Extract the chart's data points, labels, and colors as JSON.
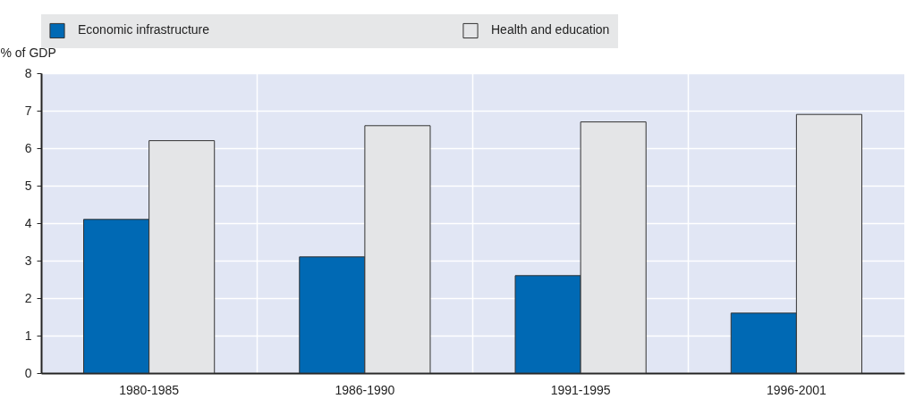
{
  "chart_data": {
    "type": "bar",
    "ylabel": "% of GDP",
    "categories": [
      "1980-1985",
      "1986-1990",
      "1991-1995",
      "1996-2001"
    ],
    "series": [
      {
        "name": "Economic infrastructure",
        "color": "#0069b4",
        "values": [
          4.1,
          3.1,
          2.6,
          1.6
        ]
      },
      {
        "name": "Health and education",
        "color": "#e4e5e7",
        "values": [
          6.2,
          6.6,
          6.7,
          6.9
        ]
      }
    ],
    "ylim": [
      0,
      8
    ],
    "yticks": [
      0,
      1,
      2,
      3,
      4,
      5,
      6,
      7,
      8
    ],
    "grid": true,
    "legend": "top"
  }
}
